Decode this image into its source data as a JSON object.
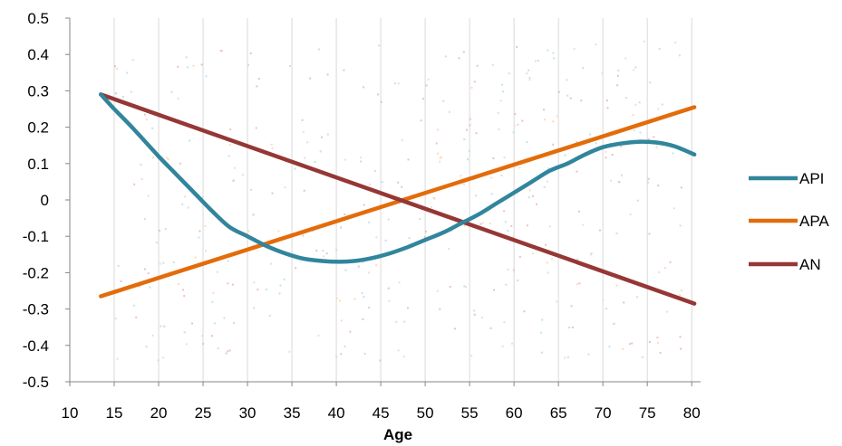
{
  "chart_data": {
    "type": "line",
    "title": "",
    "xlabel": "Age",
    "ylabel": "",
    "xlim": [
      10,
      81
    ],
    "ylim": [
      -0.5,
      0.5
    ],
    "x_ticks": [
      10,
      15,
      20,
      25,
      30,
      35,
      40,
      45,
      50,
      55,
      60,
      65,
      70,
      75,
      80
    ],
    "x_tick_labels": [
      "10",
      "15",
      "20",
      "25",
      "30",
      "35",
      "40",
      "45",
      "50",
      "55",
      "60",
      "65",
      "70",
      "75",
      "80"
    ],
    "y_ticks": [
      0.5,
      0.4,
      0.3,
      0.2,
      0.1,
      0,
      -0.1,
      -0.2,
      -0.3,
      -0.4,
      -0.5
    ],
    "y_tick_labels": [
      "0.5",
      "0.4",
      "0.3",
      "0.2",
      "0.1",
      "0",
      "-0.1",
      "-0.2",
      "-0.3",
      "-0.4",
      "-0.5"
    ],
    "grid": {
      "vertical": true,
      "horizontal": false,
      "color": "#d9d9d9"
    },
    "legend": {
      "position": "right",
      "entries": [
        "API",
        "APA",
        "AN"
      ]
    },
    "series": [
      {
        "name": "API",
        "color": "#31859c",
        "x": [
          13.5,
          15,
          17,
          20,
          22,
          24,
          26,
          28,
          30,
          32,
          34,
          36,
          38,
          40,
          42,
          44,
          46,
          48,
          50,
          52,
          54,
          56,
          58,
          60,
          62,
          64,
          66,
          68,
          70,
          72,
          74,
          76,
          78,
          80.3
        ],
        "y": [
          0.29,
          0.25,
          0.2,
          0.12,
          0.07,
          0.02,
          -0.03,
          -0.075,
          -0.1,
          -0.125,
          -0.145,
          -0.16,
          -0.167,
          -0.17,
          -0.168,
          -0.16,
          -0.147,
          -0.13,
          -0.11,
          -0.09,
          -0.065,
          -0.04,
          -0.01,
          0.02,
          0.05,
          0.08,
          0.1,
          0.125,
          0.145,
          0.155,
          0.16,
          0.158,
          0.148,
          0.125
        ]
      },
      {
        "name": "APA",
        "color": "#e36c0a",
        "x": [
          13.5,
          80.3
        ],
        "y": [
          -0.265,
          0.255
        ]
      },
      {
        "name": "AN",
        "color": "#953735",
        "x": [
          13.5,
          80.3
        ],
        "y": [
          0.29,
          -0.285
        ]
      }
    ]
  }
}
